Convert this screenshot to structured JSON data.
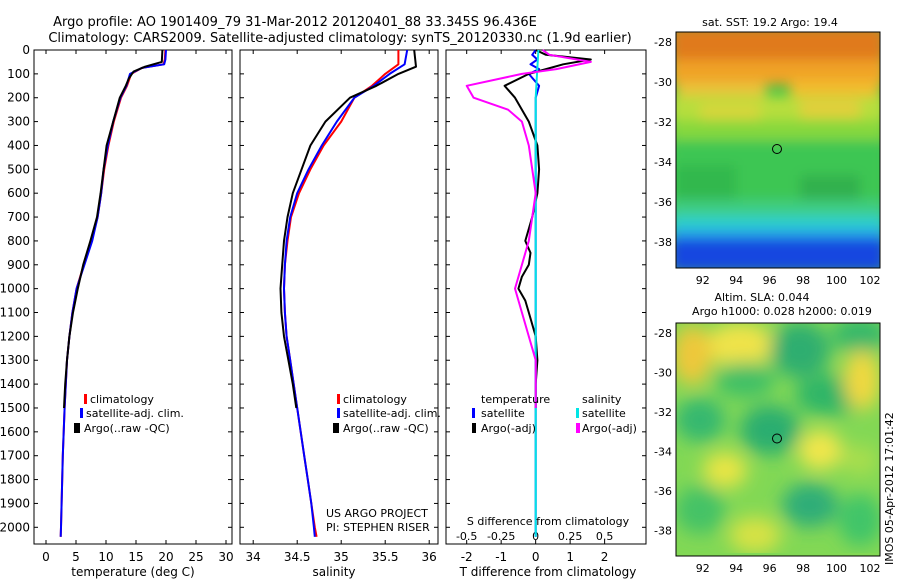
{
  "title_line1": "Argo profile: AO 1901409_79 31-Mar-2012 20120401_88 33.345S 96.436E",
  "title_line2": "Climatology: CARS2009. Satellite-adjusted climatology: synTS_20120330.nc (1.9d earlier)",
  "project_line1": "US ARGO PROJECT",
  "project_line2": "PI: STEPHEN RISER",
  "timestamp": "IMOS 05-Apr-2012 17:01:42",
  "colors": {
    "climatology": "#ff0000",
    "satellite": "#0000ff",
    "argo": "#000000",
    "sal_satellite": "#00e5e5",
    "sal_argo": "#ff00ff"
  },
  "chart_data": [
    {
      "type": "line",
      "xlabel": "temperature (deg C)",
      "ylim": [
        2070,
        0
      ],
      "xlim": [
        -2,
        31
      ],
      "xticks": [
        "0",
        "5",
        "10",
        "15",
        "20",
        "25",
        "30"
      ],
      "yticks": [
        "0",
        "100",
        "200",
        "300",
        "400",
        "500",
        "600",
        "700",
        "800",
        "900",
        "1000",
        "1100",
        "1200",
        "1300",
        "1400",
        "1500",
        "1600",
        "1700",
        "1800",
        "1900",
        "2000"
      ],
      "legend": [
        "climatology",
        "satellite-adj. clim.",
        "Argo(..raw -QC)"
      ],
      "series": [
        {
          "name": "climatology",
          "color": "#ff0000",
          "points": [
            [
              19.9,
              0
            ],
            [
              19.8,
              40
            ],
            [
              19.6,
              60
            ],
            [
              16,
              75
            ],
            [
              14.2,
              100
            ],
            [
              13.5,
              150
            ],
            [
              12.5,
              200
            ],
            [
              11.3,
              300
            ],
            [
              10.4,
              400
            ],
            [
              9.7,
              500
            ],
            [
              9.2,
              600
            ],
            [
              8.6,
              700
            ],
            [
              7.6,
              800
            ],
            [
              6.3,
              900
            ],
            [
              5.1,
              1000
            ],
            [
              4.4,
              1100
            ],
            [
              3.9,
              1200
            ],
            [
              3.5,
              1300
            ],
            [
              3.3,
              1400
            ],
            [
              3.1,
              1500
            ],
            [
              2.95,
              1600
            ],
            [
              2.8,
              1700
            ],
            [
              2.7,
              1800
            ],
            [
              2.6,
              1900
            ],
            [
              2.5,
              2000
            ],
            [
              2.45,
              2040
            ]
          ]
        },
        {
          "name": "satellite-adj. clim.",
          "color": "#0000ff",
          "points": [
            [
              20,
              0
            ],
            [
              19.9,
              40
            ],
            [
              19.7,
              60
            ],
            [
              16,
              75
            ],
            [
              14,
              100
            ],
            [
              13.4,
              150
            ],
            [
              12.4,
              200
            ],
            [
              11.2,
              300
            ],
            [
              10.3,
              400
            ],
            [
              9.6,
              500
            ],
            [
              9.2,
              600
            ],
            [
              8.6,
              700
            ],
            [
              7.7,
              800
            ],
            [
              6.4,
              900
            ],
            [
              5.1,
              1000
            ],
            [
              4.4,
              1100
            ],
            [
              3.9,
              1200
            ],
            [
              3.5,
              1300
            ],
            [
              3.3,
              1400
            ],
            [
              3.1,
              1500
            ],
            [
              2.95,
              1600
            ],
            [
              2.8,
              1700
            ],
            [
              2.7,
              1800
            ],
            [
              2.6,
              1900
            ],
            [
              2.5,
              2000
            ],
            [
              2.45,
              2040
            ]
          ]
        },
        {
          "name": "Argo(..raw -QC)",
          "color": "#000000",
          "points": [
            [
              19.4,
              0
            ],
            [
              19.3,
              50
            ],
            [
              16.5,
              70
            ],
            [
              14.6,
              90
            ],
            [
              13.8,
              120
            ],
            [
              13.3,
              150
            ],
            [
              12.3,
              200
            ],
            [
              11.2,
              300
            ],
            [
              10.1,
              400
            ],
            [
              9.6,
              500
            ],
            [
              9.1,
              600
            ],
            [
              8.5,
              700
            ],
            [
              7.4,
              800
            ],
            [
              6.2,
              900
            ],
            [
              5.3,
              1000
            ],
            [
              4.5,
              1100
            ],
            [
              3.9,
              1200
            ],
            [
              3.5,
              1300
            ],
            [
              3.2,
              1400
            ],
            [
              3,
              1500
            ]
          ]
        }
      ]
    },
    {
      "type": "line",
      "xlabel": "salinity",
      "ylim": [
        2070,
        0
      ],
      "xlim": [
        33.85,
        36.1
      ],
      "xticks": [
        "34",
        "34.5",
        "35",
        "35.5",
        "36"
      ],
      "legend": [
        "climatology",
        "satellite-adj. clim.",
        "Argo(..raw -QC)"
      ],
      "series": [
        {
          "name": "climatology",
          "color": "#ff0000",
          "points": [
            [
              35.65,
              0
            ],
            [
              35.65,
              60
            ],
            [
              35.5,
              100
            ],
            [
              35.35,
              150
            ],
            [
              35.15,
              200
            ],
            [
              35,
              300
            ],
            [
              34.8,
              400
            ],
            [
              34.65,
              500
            ],
            [
              34.52,
              600
            ],
            [
              34.43,
              700
            ],
            [
              34.39,
              800
            ],
            [
              34.36,
              900
            ],
            [
              34.35,
              1000
            ],
            [
              34.36,
              1100
            ],
            [
              34.38,
              1200
            ],
            [
              34.42,
              1300
            ],
            [
              34.46,
              1400
            ],
            [
              34.5,
              1500
            ],
            [
              34.54,
              1600
            ],
            [
              34.58,
              1700
            ],
            [
              34.62,
              1800
            ],
            [
              34.66,
              1900
            ],
            [
              34.7,
              2000
            ],
            [
              34.72,
              2040
            ]
          ]
        },
        {
          "name": "satellite-adj. clim.",
          "color": "#0000ff",
          "points": [
            [
              35.75,
              0
            ],
            [
              35.72,
              60
            ],
            [
              35.55,
              100
            ],
            [
              35.37,
              150
            ],
            [
              35.15,
              200
            ],
            [
              34.95,
              300
            ],
            [
              34.78,
              400
            ],
            [
              34.63,
              500
            ],
            [
              34.5,
              600
            ],
            [
              34.42,
              700
            ],
            [
              34.38,
              800
            ],
            [
              34.36,
              900
            ],
            [
              34.35,
              1000
            ],
            [
              34.36,
              1100
            ],
            [
              34.38,
              1200
            ],
            [
              34.42,
              1300
            ],
            [
              34.46,
              1400
            ],
            [
              34.5,
              1500
            ],
            [
              34.54,
              1600
            ],
            [
              34.58,
              1700
            ],
            [
              34.62,
              1800
            ],
            [
              34.66,
              1900
            ],
            [
              34.69,
              2000
            ],
            [
              34.7,
              2040
            ]
          ]
        },
        {
          "name": "Argo(..raw -QC)",
          "color": "#000000",
          "points": [
            [
              35.83,
              0
            ],
            [
              35.85,
              70
            ],
            [
              35.65,
              100
            ],
            [
              35.4,
              150
            ],
            [
              35.1,
              200
            ],
            [
              34.82,
              300
            ],
            [
              34.65,
              400
            ],
            [
              34.55,
              500
            ],
            [
              34.45,
              600
            ],
            [
              34.39,
              700
            ],
            [
              34.35,
              800
            ],
            [
              34.33,
              900
            ],
            [
              34.31,
              1000
            ],
            [
              34.32,
              1100
            ],
            [
              34.35,
              1200
            ],
            [
              34.4,
              1300
            ],
            [
              34.45,
              1400
            ],
            [
              34.49,
              1500
            ]
          ]
        }
      ]
    },
    {
      "type": "line",
      "xlabel": "T difference from climatology",
      "xlabel_top": "S difference from climatology",
      "ylim": [
        2070,
        0
      ],
      "xlim": [
        -2.6,
        3.2
      ],
      "xticks": [
        "-2",
        "-1",
        "0",
        "1",
        "2"
      ],
      "xticks_top": [
        "-0.5",
        "-0.25",
        "0",
        "0.25",
        "0.5"
      ],
      "legend_title_left": "temperature",
      "legend_title_right": "salinity",
      "legend": [
        "satellite",
        "Argo(-adj)",
        "satellite",
        "Argo(-adj)"
      ],
      "series": [
        {
          "name": "temperature satellite",
          "color": "#0000ff",
          "points": [
            [
              0,
              0
            ],
            [
              -0.1,
              20
            ],
            [
              0.05,
              40
            ],
            [
              -0.15,
              60
            ],
            [
              0.1,
              80
            ],
            [
              -0.2,
              100
            ],
            [
              0.1,
              150
            ],
            [
              0,
              200
            ],
            [
              0,
              400
            ],
            [
              0,
              1000
            ],
            [
              0,
              2040
            ]
          ]
        },
        {
          "name": "temperature Argo(-adj)",
          "color": "#000000",
          "points": [
            [
              0,
              0
            ],
            [
              0.3,
              20
            ],
            [
              1.6,
              40
            ],
            [
              0.8,
              60
            ],
            [
              0.3,
              80
            ],
            [
              -0.2,
              100
            ],
            [
              -0.9,
              150
            ],
            [
              -0.6,
              200
            ],
            [
              -0.2,
              300
            ],
            [
              0.05,
              400
            ],
            [
              0.1,
              500
            ],
            [
              0.05,
              600
            ],
            [
              -0.1,
              700
            ],
            [
              -0.3,
              800
            ],
            [
              -0.15,
              850
            ],
            [
              -0.2,
              900
            ],
            [
              -0.4,
              950
            ],
            [
              -0.5,
              1000
            ],
            [
              -0.3,
              1050
            ],
            [
              -0.2,
              1100
            ],
            [
              0,
              1200
            ],
            [
              0.05,
              1300
            ],
            [
              0,
              1400
            ],
            [
              0,
              1500
            ]
          ]
        },
        {
          "name": "salinity satellite",
          "color": "#00e5e5",
          "points": [
            [
              0.02,
              0
            ],
            [
              0.01,
              100
            ],
            [
              0,
              200
            ],
            [
              0,
              500
            ],
            [
              0,
              1000
            ],
            [
              0,
              2040
            ]
          ]
        },
        {
          "name": "salinity Argo(-adj)",
          "color": "#ff00ff",
          "points": [
            [
              0.05,
              0
            ],
            [
              0.1,
              20
            ],
            [
              0.4,
              50
            ],
            [
              0.15,
              80
            ],
            [
              -0.1,
              100
            ],
            [
              -0.5,
              150
            ],
            [
              -0.45,
              200
            ],
            [
              -0.2,
              250
            ],
            [
              -0.1,
              300
            ],
            [
              -0.05,
              400
            ],
            [
              0,
              600
            ],
            [
              -0.05,
              800
            ],
            [
              -0.1,
              900
            ],
            [
              -0.15,
              1000
            ],
            [
              -0.1,
              1100
            ],
            [
              -0.05,
              1200
            ],
            [
              0,
              1300
            ],
            [
              0,
              1500
            ]
          ]
        }
      ]
    },
    {
      "type": "heatmap",
      "title": "sat. SST: 19.2  Argo: 19.4",
      "xticks": [
        "92",
        "94",
        "96",
        "98",
        "100",
        "102"
      ],
      "yticks": [
        "-28",
        "-30",
        "-32",
        "-34",
        "-36",
        "-38"
      ],
      "xlim": [
        90.4,
        102.6
      ],
      "ylim": [
        -39.3,
        -27.5
      ],
      "marker": [
        96.44,
        -33.35
      ]
    },
    {
      "type": "heatmap",
      "title_line1": "Altim. SLA: 0.044",
      "title_line2": "Argo h1000: 0.028 h2000: 0.019",
      "xticks": [
        "92",
        "94",
        "96",
        "98",
        "100",
        "102"
      ],
      "yticks": [
        "-28",
        "-30",
        "-32",
        "-34",
        "-36",
        "-38"
      ],
      "xlim": [
        90.4,
        102.6
      ],
      "ylim": [
        -39.3,
        -27.5
      ],
      "marker": [
        96.44,
        -33.35
      ]
    }
  ]
}
